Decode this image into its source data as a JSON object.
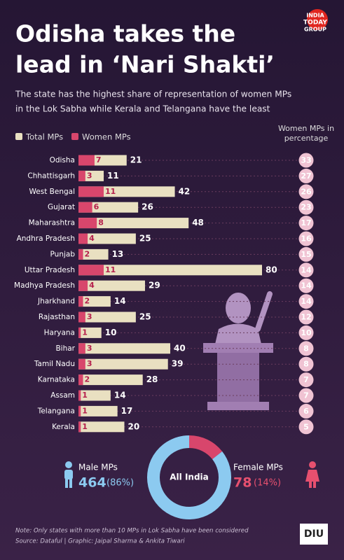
{
  "header": {
    "title_line1": "Odisha takes the",
    "title_line2": "lead in ‘Nari Shakti’",
    "subtitle_line1": "The state has the highest share of representation of women MPs",
    "subtitle_line2": "in the Lok Sabha while Kerala and Telangana have the least",
    "logo_line1": "INDIA",
    "logo_line2": "TODAY",
    "logo_line3": "GROUP"
  },
  "chart_data": {
    "type": "bar",
    "orientation": "horizontal",
    "categories": [
      "Odisha",
      "Chhattisgarh",
      "West Bengal",
      "Gujarat",
      "Maharashtra",
      "Andhra Pradesh",
      "Punjab",
      "Uttar Pradesh",
      "Madhya Pradesh",
      "Jharkhand",
      "Rajasthan",
      "Haryana",
      "Bihar",
      "Tamil Nadu",
      "Karnataka",
      "Assam",
      "Telangana",
      "Kerala"
    ],
    "series": [
      {
        "name": "Total MPs",
        "color": "#e9e0c1",
        "values": [
          21,
          11,
          42,
          26,
          48,
          25,
          13,
          80,
          29,
          14,
          25,
          10,
          40,
          39,
          28,
          14,
          17,
          20
        ]
      },
      {
        "name": "Women MPs",
        "color": "#d8466c",
        "values": [
          7,
          3,
          11,
          6,
          8,
          4,
          2,
          11,
          4,
          2,
          3,
          1,
          3,
          3,
          2,
          1,
          1,
          1
        ]
      }
    ],
    "percent_header_line1": "Women MPs in",
    "percent_header_line2": "percentage",
    "percent_color": "#f0c3d3",
    "percent_values": [
      33,
      27,
      26,
      23,
      17,
      16,
      15,
      14,
      14,
      14,
      12,
      10,
      8,
      8,
      7,
      7,
      6,
      5
    ]
  },
  "summary": {
    "center_label": "All India",
    "male": {
      "name": "Male MPs",
      "value": 464,
      "share_label": "(86%)",
      "color": "#8ccaf0"
    },
    "female": {
      "name": "Female MPs",
      "value": 78,
      "share_label": "(14%)",
      "color": "#d8466c"
    }
  },
  "footer": {
    "note": "Note: Only states with more than 10 MPs in Lok Sabha have been considered",
    "source": "Source: Dataful  |  Graphic: Jaipal Sharma & Ankita Tiwari",
    "badge": "DIU"
  }
}
